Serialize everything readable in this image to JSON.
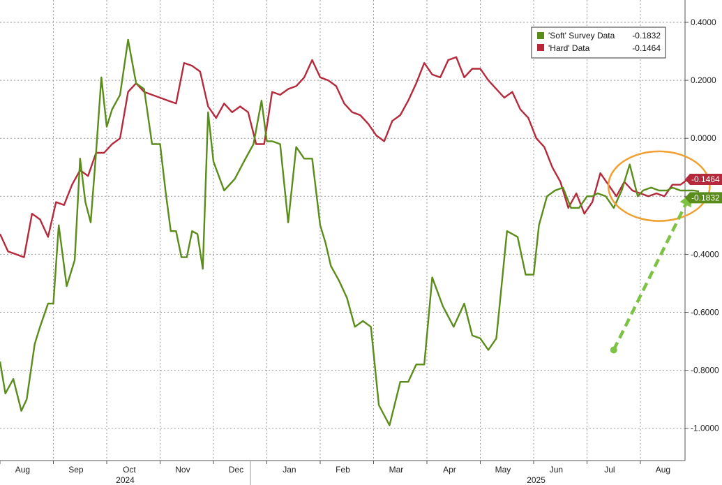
{
  "chart_data": {
    "type": "line",
    "title": "",
    "xlabel": "",
    "ylabel": "",
    "ylim": [
      -1.05,
      0.45
    ],
    "y_ticks": [
      "0.4000",
      "0.2000",
      "0.0000",
      "-0.2000",
      "-0.4000",
      "-0.6000",
      "-0.8000",
      "-1.0000"
    ],
    "y_tick_values": [
      0.4,
      0.2,
      0.0,
      -0.2,
      -0.4,
      -0.6,
      -0.8,
      -1.0
    ],
    "x_range": [
      0,
      21
    ],
    "months": [
      {
        "label": "Aug",
        "pos": 0.45
      },
      {
        "label": "Sep",
        "pos": 1.45
      },
      {
        "label": "Oct",
        "pos": 2.45
      },
      {
        "label": "Nov",
        "pos": 3.45
      },
      {
        "label": "Dec",
        "pos": 4.45
      },
      {
        "label": "Jan",
        "pos": 5.45
      },
      {
        "label": "Feb",
        "pos": 6.45
      },
      {
        "label": "Mar",
        "pos": 7.45
      },
      {
        "label": "Apr",
        "pos": 8.45
      },
      {
        "label": "May",
        "pos": 9.45
      },
      {
        "label": "Jun",
        "pos": 10.45
      },
      {
        "label": "Jul",
        "pos": 11.45
      },
      {
        "label": "Aug",
        "pos": 12.45
      }
    ],
    "years": [
      {
        "label": "2024",
        "pos": 3.0
      },
      {
        "label": "2025",
        "pos": 10.7
      }
    ],
    "grid": true,
    "legend_position": "top-right",
    "series": [
      {
        "name": "'Soft' Survey Data",
        "last_label": "-0.1832",
        "color": "#5a8c1a",
        "x": [
          0,
          0.1,
          0.25,
          0.4,
          0.5,
          0.65,
          0.75,
          0.9,
          1.0,
          1.1,
          1.25,
          1.4,
          1.5,
          1.6,
          1.7,
          1.8,
          1.9,
          2.0,
          2.1,
          2.25,
          2.4,
          2.55,
          2.7,
          2.85,
          3.0,
          3.1,
          3.2,
          3.3,
          3.4,
          3.5,
          3.6,
          3.7,
          3.8,
          3.9,
          4.0,
          4.2,
          4.4,
          4.6,
          4.75,
          4.9,
          5.0,
          5.1,
          5.25,
          5.4,
          5.55,
          5.7,
          5.85,
          6.0,
          6.1,
          6.2,
          6.35,
          6.5,
          6.65,
          6.8,
          6.95,
          7.1,
          7.3,
          7.5,
          7.65,
          7.8,
          7.95,
          8.1,
          8.3,
          8.5,
          8.7,
          8.85,
          9.0,
          9.15,
          9.3,
          9.5,
          9.7,
          9.85,
          10.0,
          10.1,
          10.25,
          10.4,
          10.55,
          10.7,
          10.85,
          11.0,
          11.1,
          11.2,
          11.35,
          11.5,
          11.65,
          11.8,
          11.95,
          12.05,
          12.2,
          12.35,
          12.5,
          12.6,
          12.75,
          12.9,
          12.95,
          13.0,
          13.1
        ],
        "y": [
          -0.77,
          -0.88,
          -0.83,
          -0.94,
          -0.9,
          -0.71,
          -0.65,
          -0.57,
          -0.57,
          -0.3,
          -0.51,
          -0.42,
          -0.07,
          -0.22,
          -0.29,
          -0.05,
          0.21,
          0.04,
          0.1,
          0.15,
          0.34,
          0.19,
          0.17,
          -0.02,
          -0.02,
          -0.18,
          -0.32,
          -0.32,
          -0.41,
          -0.41,
          -0.32,
          -0.33,
          -0.45,
          0.09,
          -0.08,
          -0.18,
          -0.14,
          -0.07,
          -0.02,
          0.13,
          -0.01,
          -0.01,
          -0.02,
          -0.29,
          -0.03,
          -0.07,
          -0.07,
          -0.3,
          -0.36,
          -0.44,
          -0.49,
          -0.55,
          -0.65,
          -0.63,
          -0.65,
          -0.92,
          -0.99,
          -0.84,
          -0.84,
          -0.78,
          -0.78,
          -0.48,
          -0.58,
          -0.65,
          -0.57,
          -0.68,
          -0.69,
          -0.73,
          -0.69,
          -0.32,
          -0.34,
          -0.47,
          -0.47,
          -0.3,
          -0.2,
          -0.18,
          -0.17,
          -0.24,
          -0.24,
          -0.2,
          -0.2,
          -0.19,
          -0.2,
          -0.24,
          -0.18,
          -0.09,
          -0.2,
          -0.18,
          -0.17,
          -0.18,
          -0.18,
          -0.17,
          -0.18,
          -0.18,
          -0.18,
          -0.18,
          -0.1832
        ]
      },
      {
        "name": "'Hard' Data",
        "last_label": "-0.1464",
        "color": "#b5293a",
        "x": [
          0,
          0.15,
          0.3,
          0.45,
          0.6,
          0.75,
          0.9,
          1.05,
          1.2,
          1.35,
          1.5,
          1.65,
          1.8,
          1.95,
          2.1,
          2.25,
          2.4,
          2.55,
          2.7,
          2.85,
          3.0,
          3.15,
          3.3,
          3.45,
          3.6,
          3.75,
          3.9,
          4.05,
          4.2,
          4.35,
          4.5,
          4.65,
          4.8,
          4.95,
          5.1,
          5.25,
          5.4,
          5.55,
          5.7,
          5.85,
          6.0,
          6.15,
          6.3,
          6.45,
          6.6,
          6.75,
          6.9,
          7.05,
          7.2,
          7.35,
          7.5,
          7.65,
          7.8,
          7.95,
          8.1,
          8.25,
          8.4,
          8.55,
          8.7,
          8.85,
          9.0,
          9.15,
          9.3,
          9.45,
          9.6,
          9.75,
          9.9,
          10.05,
          10.2,
          10.35,
          10.5,
          10.65,
          10.8,
          10.95,
          11.1,
          11.25,
          11.4,
          11.55,
          11.7,
          11.85,
          12.0,
          12.15,
          12.3,
          12.45,
          12.6,
          12.75,
          12.9,
          13.0,
          13.1
        ],
        "y": [
          -0.33,
          -0.39,
          -0.4,
          -0.41,
          -0.26,
          -0.28,
          -0.34,
          -0.22,
          -0.23,
          -0.16,
          -0.11,
          -0.13,
          -0.05,
          -0.05,
          -0.02,
          0.0,
          0.16,
          0.19,
          0.16,
          0.15,
          0.14,
          0.13,
          0.12,
          0.26,
          0.25,
          0.23,
          0.11,
          0.07,
          0.12,
          0.09,
          0.11,
          0.09,
          -0.02,
          -0.02,
          0.16,
          0.15,
          0.17,
          0.18,
          0.21,
          0.27,
          0.21,
          0.2,
          0.18,
          0.12,
          0.09,
          0.08,
          0.05,
          0.01,
          -0.01,
          0.06,
          0.08,
          0.13,
          0.19,
          0.26,
          0.22,
          0.21,
          0.27,
          0.28,
          0.21,
          0.24,
          0.24,
          0.2,
          0.17,
          0.14,
          0.16,
          0.1,
          0.07,
          0.0,
          -0.03,
          -0.1,
          -0.15,
          -0.24,
          -0.19,
          -0.26,
          -0.22,
          -0.12,
          -0.16,
          -0.2,
          -0.15,
          -0.18,
          -0.19,
          -0.2,
          -0.19,
          -0.2,
          -0.16,
          -0.16,
          -0.14,
          -0.15,
          -0.1464
        ]
      }
    ],
    "annotations": {
      "circle": {
        "x_center": 12.35,
        "y_center": -0.165,
        "x_radius": 0.95,
        "y_radius": 0.12
      },
      "arrow": {
        "x_start": 11.5,
        "y_start": -0.73,
        "x_end": 12.95,
        "y_end": -0.19
      }
    }
  }
}
